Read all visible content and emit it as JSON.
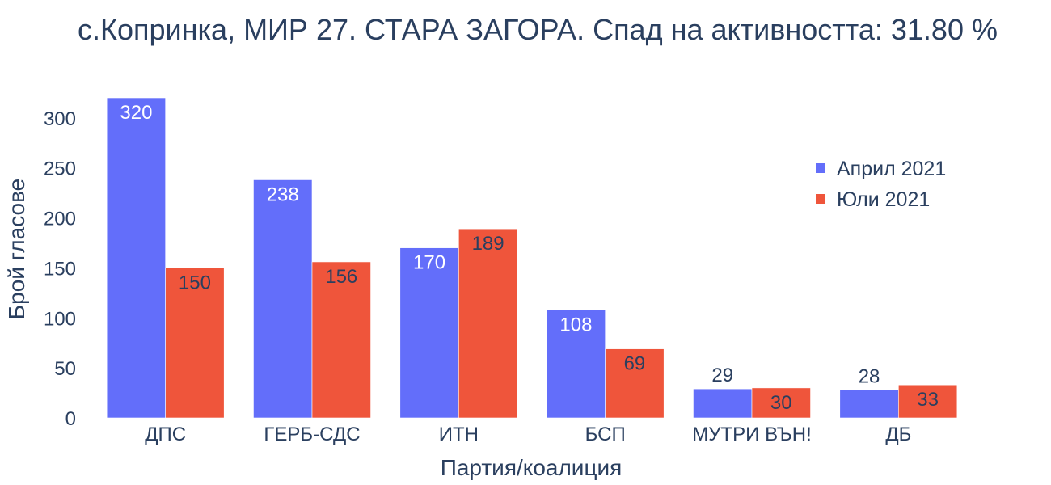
{
  "chart_data": {
    "type": "bar",
    "title": "с.Копринка, МИР 27. СТАРА ЗАГОРА. Спад на активността: 31.80 %",
    "xlabel": "Партия/коалиция",
    "ylabel": "Брой гласове",
    "categories": [
      "ДПС",
      "ГЕРБ-СДС",
      "ИТН",
      "БСП",
      "МУТРИ ВЪН!",
      "ДБ"
    ],
    "series": [
      {
        "name": "Април 2021",
        "color": "#636efa",
        "values": [
          320,
          238,
          170,
          108,
          29,
          28
        ]
      },
      {
        "name": "Юли 2021",
        "color": "#ef553b",
        "values": [
          150,
          156,
          189,
          69,
          30,
          33
        ]
      }
    ],
    "ylim": [
      0,
      320
    ],
    "yticks": [
      0,
      50,
      100,
      150,
      200,
      250,
      300
    ],
    "grid": false,
    "legend_position": "top-right"
  }
}
